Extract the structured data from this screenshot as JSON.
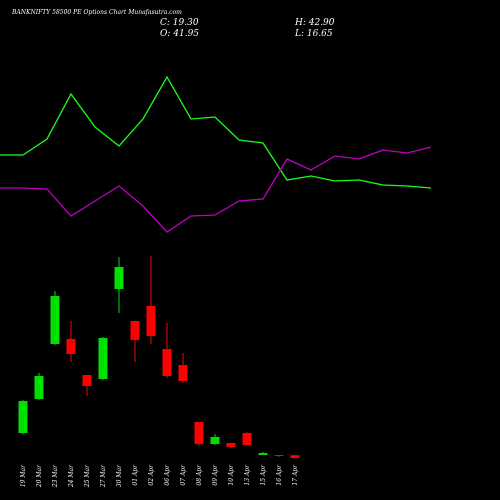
{
  "chart_data": {
    "type": "candlestick",
    "title": "BANKNIFTY 58500 PE Options Chart Munafasutra.com",
    "info": [
      "C: 19.30",
      "O: 41.95",
      "H: 42.90",
      "L: 16.65"
    ],
    "categories": [
      "19 Mar",
      "20 Mar",
      "23 Mar",
      "24 Mar",
      "25 Mar",
      "27 Mar",
      "30 Mar",
      "01 Apr",
      "02 Apr",
      "06 Apr",
      "07 Apr",
      "08 Apr",
      "09 Apr",
      "10 Apr",
      "13 Apr",
      "15 Apr",
      "16 Apr",
      "17 Apr"
    ],
    "open": [
      220,
      492,
      932,
      972,
      684,
      652,
      1372,
      1116,
      1236,
      892,
      764,
      308,
      132,
      140,
      220,
      44,
      44,
      41.95
    ],
    "high": [
      484,
      700,
      1356,
      1116,
      684,
      988,
      1628,
      1116,
      1636,
      1100,
      860,
      308,
      212,
      140,
      228,
      68,
      44,
      42.9
    ],
    "low": [
      212,
      484,
      924,
      788,
      516,
      644,
      1180,
      788,
      932,
      660,
      620,
      116,
      124,
      100,
      124,
      44,
      28,
      16.65
    ],
    "close": [
      476,
      676,
      1316,
      852,
      596,
      980,
      1548,
      964,
      996,
      676,
      636,
      132,
      188,
      108,
      124,
      60,
      36,
      19.3
    ],
    "up_color": "#00e000",
    "down_color": "#ff0000",
    "ylim": [
      0,
      3600
    ],
    "y2lim": [
      0,
      300
    ],
    "series": [
      {
        "color": "#1aff1a",
        "axis": "y2",
        "values": [
          145,
          161,
          206,
          173,
          154,
          181,
          223,
          181,
          183,
          160,
          157,
          120,
          124,
          119,
          120,
          115,
          114,
          112
        ]
      },
      {
        "color": "#c000c0",
        "axis": "y2",
        "values": [
          112,
          111,
          84,
          99,
          114,
          94,
          68,
          84,
          85,
          99,
          101,
          141,
          130,
          144,
          141,
          150,
          147,
          153
        ]
      }
    ]
  }
}
